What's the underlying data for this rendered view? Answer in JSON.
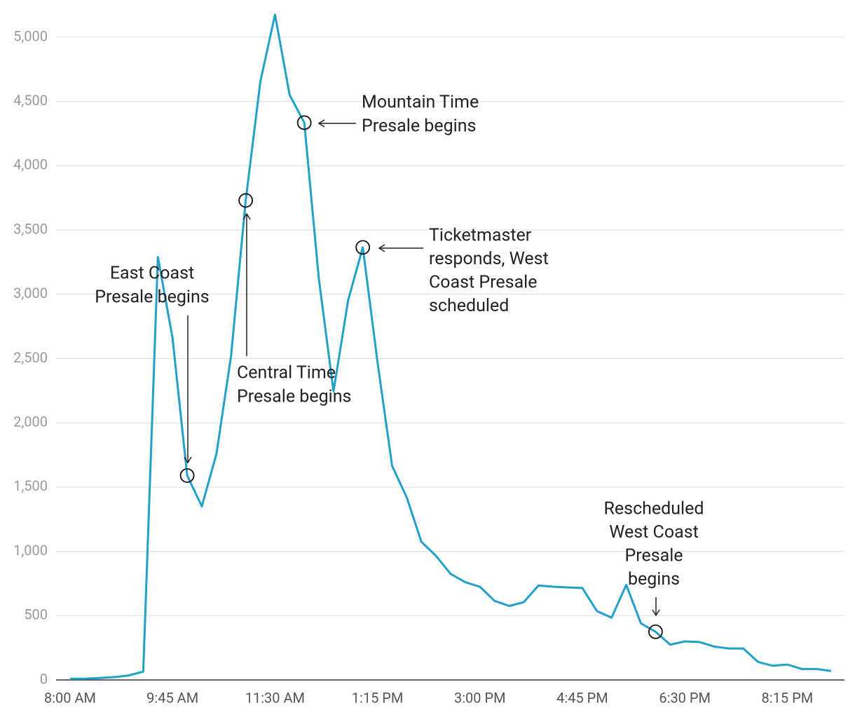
{
  "chart_data": {
    "type": "line",
    "categories": [
      "8:00 AM",
      null,
      null,
      null,
      null,
      null,
      null,
      "9:45 AM",
      null,
      null,
      null,
      null,
      null,
      null,
      "11:30 AM",
      null,
      null,
      null,
      null,
      null,
      null,
      "1:15 PM",
      null,
      null,
      null,
      null,
      null,
      null,
      "3:00 PM",
      null,
      null,
      null,
      null,
      null,
      null,
      "4:45 PM",
      null,
      null,
      null,
      null,
      null,
      null,
      "6:30 PM",
      null,
      null,
      null,
      null,
      null,
      null,
      "8:15 PM",
      null,
      null,
      null
    ],
    "series": [
      {
        "color": "#21a0cc",
        "values": [
          10,
          10,
          15,
          22,
          35,
          65,
          3290,
          2660,
          1590,
          1350,
          1760,
          2520,
          3730,
          4655,
          5175,
          4550,
          4335,
          3120,
          2245,
          2955,
          3365,
          2475,
          1665,
          1420,
          1075,
          965,
          825,
          760,
          725,
          615,
          575,
          605,
          735,
          725,
          720,
          715,
          535,
          485,
          740,
          440,
          375,
          275,
          300,
          295,
          260,
          245,
          245,
          140,
          110,
          120,
          85,
          85,
          70
        ]
      }
    ],
    "ylim": [
      0,
      5000
    ],
    "yticks": [
      0,
      {
        "value": 500,
        "label": "500"
      },
      {
        "value": 1000,
        "label": "1,000"
      },
      {
        "value": 1500,
        "label": "1,500"
      },
      {
        "value": 2000,
        "label": "2,000"
      },
      {
        "value": 2500,
        "label": "2,500"
      },
      {
        "value": 3000,
        "label": "3,000"
      },
      {
        "value": 3500,
        "label": "3,500"
      },
      {
        "value": 4000,
        "label": "4,000"
      },
      {
        "value": 4500,
        "label": "4,500"
      },
      {
        "value": 5000,
        "label": "5,000"
      }
    ],
    "grid": true,
    "annotations": [
      {
        "point": 8,
        "lines": [
          "East Coast",
          "Presale begins"
        ]
      },
      {
        "point": 12,
        "lines": [
          "Central Time",
          "Presale begins"
        ]
      },
      {
        "point": 16,
        "lines": [
          "Mountain Time",
          "Presale begins"
        ]
      },
      {
        "point": 20,
        "lines": [
          "Ticketmaster",
          "responds, West",
          "Coast Presale",
          "scheduled"
        ]
      },
      {
        "point": 40,
        "lines": [
          "Rescheduled",
          "West Coast",
          "Presale",
          "begins"
        ]
      }
    ]
  }
}
